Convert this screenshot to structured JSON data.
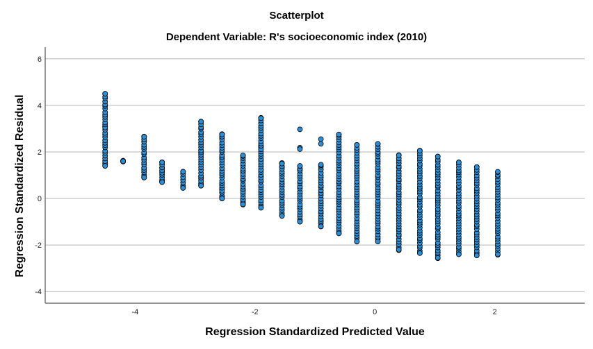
{
  "chart_data": {
    "type": "scatter",
    "title": "Scatterplot",
    "subtitle": "Dependent Variable: R's socioeconomic index (2010)",
    "xlabel": "Regression Standardized Predicted Value",
    "ylabel": "Regression Standardized Residual",
    "xlim": [
      -5.5,
      3.5
    ],
    "ylim": [
      -4.5,
      6.5
    ],
    "xticks": [
      -4,
      -2,
      0,
      2
    ],
    "yticks": [
      -4,
      -2,
      0,
      2,
      4,
      6
    ],
    "grid": "horizontal",
    "point_color": "#2b8fd8",
    "point_edge_color": "#000000",
    "columns": [
      {
        "x": -4.5,
        "ymin": 1.4,
        "ymax": 4.5,
        "points": [
          4.5,
          3.55,
          3.1,
          3.08,
          1.48,
          1.42
        ]
      },
      {
        "x": -4.2,
        "ymin": 1.6,
        "ymax": 1.6,
        "points": [
          1.6
        ]
      },
      {
        "x": -3.85,
        "ymin": 0.9,
        "ymax": 2.65,
        "points": [
          2.65,
          1.28,
          0.92
        ]
      },
      {
        "x": -3.55,
        "ymin": 0.7,
        "ymax": 1.55,
        "points": [
          1.55,
          1.3,
          1.15,
          0.78,
          0.72
        ]
      },
      {
        "x": -3.2,
        "ymin": 0.45,
        "ymax": 1.15,
        "points": [
          1.15,
          0.92,
          0.48
        ]
      },
      {
        "x": -2.9,
        "ymin": 0.55,
        "ymax": 3.3,
        "points": [
          3.3,
          1.95,
          0.95,
          0.85,
          0.6
        ]
      },
      {
        "x": -2.55,
        "ymin": 0.0,
        "ymax": 2.75,
        "points": [
          2.75,
          2.6,
          1.72,
          0.65,
          0.58,
          0.45,
          0.38,
          0.1,
          0.02
        ]
      },
      {
        "x": -2.2,
        "ymin": -0.25,
        "ymax": 1.85,
        "points": [
          1.85,
          1.15,
          0.8,
          0.35,
          -0.05,
          -0.2
        ]
      },
      {
        "x": -1.9,
        "ymin": -0.4,
        "ymax": 3.45,
        "points": [
          3.45,
          2.25,
          2.2,
          1.65,
          1.25,
          0.95
        ]
      },
      {
        "x": -1.55,
        "ymin": -0.75,
        "ymax": 1.5,
        "points": [
          1.5,
          1.35
        ]
      },
      {
        "x": -1.25,
        "ymin": -1.0,
        "ymax": 1.4,
        "points": [
          2.97,
          2.18,
          2.12,
          1.25
        ]
      },
      {
        "x": -0.9,
        "ymin": -1.2,
        "ymax": 1.45,
        "points": [
          2.55,
          2.35
        ]
      },
      {
        "x": -0.6,
        "ymin": -1.5,
        "ymax": 2.75,
        "points": []
      },
      {
        "x": -0.3,
        "ymin": -1.85,
        "ymax": 2.3,
        "points": []
      },
      {
        "x": 0.05,
        "ymin": -1.85,
        "ymax": 2.35,
        "points": []
      },
      {
        "x": 0.4,
        "ymin": -2.2,
        "ymax": 1.85,
        "points": []
      },
      {
        "x": 0.75,
        "ymin": -2.35,
        "ymax": 2.05,
        "points": []
      },
      {
        "x": 1.05,
        "ymin": -2.55,
        "ymax": 1.8,
        "points": []
      },
      {
        "x": 1.4,
        "ymin": -2.4,
        "ymax": 1.55,
        "points": []
      },
      {
        "x": 1.7,
        "ymin": -2.45,
        "ymax": 1.35,
        "points": []
      },
      {
        "x": 2.05,
        "ymin": -2.4,
        "ymax": 1.15,
        "points": []
      }
    ]
  }
}
